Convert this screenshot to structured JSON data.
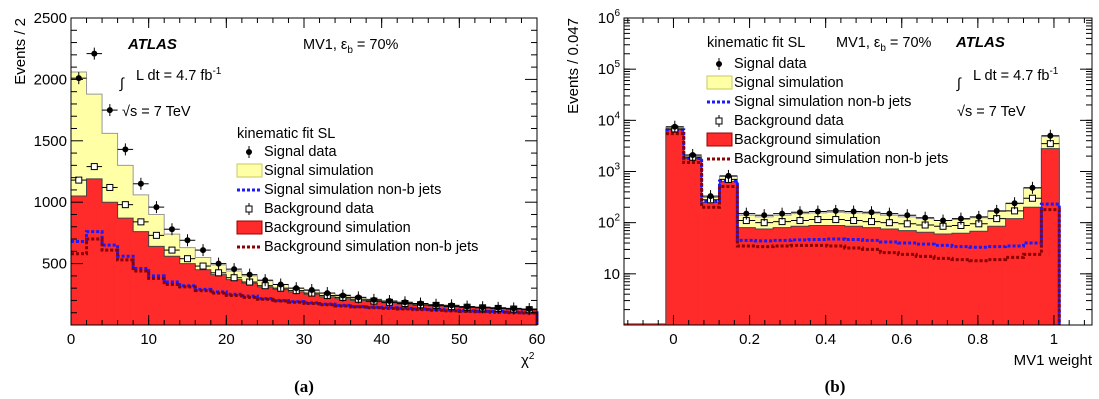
{
  "figure": {
    "panel_a_label": "(a)",
    "panel_b_label": "(b)"
  },
  "chart_data": [
    {
      "type": "bar",
      "panel": "(a)",
      "xlabel": "χ²",
      "ylabel": "Events / 2",
      "xlim": [
        0,
        60
      ],
      "ylim": [
        0,
        2500
      ],
      "xticks": [
        0,
        10,
        20,
        30,
        40,
        50,
        60
      ],
      "yticks": [
        500,
        1000,
        1500,
        2000,
        2500
      ],
      "atlas_label": "ATLAS",
      "mv1_label": "MV1, ε",
      "mv1_sub": "b",
      "mv1_tail": " = 70%",
      "lumi_prefix": "L dt = 4.7 fb",
      "lumi_exp": "-1",
      "energy_label": "√s = 7 TeV",
      "legend_title": "kinematic fit SL",
      "legend": [
        "Signal data",
        "Signal simulation",
        "Signal simulation non-b jets",
        "Background data",
        "Background simulation",
        "Background simulation non-b jets"
      ],
      "bin_edges": [
        0,
        2,
        4,
        6,
        8,
        10,
        12,
        14,
        16,
        18,
        20,
        22,
        24,
        26,
        28,
        30,
        32,
        34,
        36,
        38,
        40,
        42,
        44,
        46,
        48,
        50,
        52,
        54,
        56,
        58,
        60
      ],
      "series": [
        {
          "name": "Signal data",
          "values": [
            2010,
            2210,
            1750,
            1430,
            1150,
            960,
            780,
            690,
            610,
            500,
            455,
            410,
            365,
            330,
            300,
            285,
            260,
            240,
            225,
            205,
            195,
            185,
            175,
            165,
            160,
            150,
            145,
            140,
            135,
            130
          ]
        },
        {
          "name": "Signal simulation",
          "values": [
            2060,
            1880,
            1560,
            1300,
            1060,
            900,
            740,
            630,
            550,
            490,
            440,
            400,
            360,
            330,
            300,
            280,
            260,
            245,
            225,
            210,
            195,
            185,
            175,
            165,
            160,
            150,
            145,
            140,
            135,
            130
          ]
        },
        {
          "name": "Signal simulation non-b jets",
          "values": [
            680,
            760,
            650,
            560,
            460,
            400,
            350,
            320,
            290,
            270,
            250,
            235,
            215,
            200,
            190,
            180,
            170,
            160,
            150,
            145,
            140,
            135,
            130,
            125,
            120,
            115,
            110,
            110,
            105,
            100
          ]
        },
        {
          "name": "Background data",
          "values": [
            1180,
            1290,
            1120,
            980,
            840,
            730,
            610,
            540,
            480,
            425,
            385,
            350,
            320,
            300,
            280,
            260,
            240,
            225,
            210,
            195,
            185,
            175,
            165,
            160,
            150,
            145,
            140,
            135,
            130,
            125
          ]
        },
        {
          "name": "Background simulation",
          "values": [
            1050,
            1190,
            1000,
            870,
            760,
            640,
            560,
            500,
            450,
            410,
            370,
            340,
            310,
            290,
            270,
            250,
            230,
            215,
            200,
            190,
            180,
            170,
            160,
            155,
            150,
            145,
            140,
            135,
            130,
            125
          ]
        },
        {
          "name": "Background simulation non-b jets",
          "values": [
            580,
            700,
            610,
            530,
            440,
            380,
            330,
            310,
            280,
            260,
            240,
            225,
            210,
            195,
            185,
            175,
            165,
            155,
            148,
            140,
            135,
            130,
            125,
            120,
            115,
            110,
            108,
            104,
            100,
            98
          ]
        }
      ]
    },
    {
      "type": "bar",
      "panel": "(b)",
      "xlabel": "MV1 weight",
      "ylabel": "Events / 0.047",
      "xlim": [
        -0.13,
        1.1
      ],
      "ylim": [
        1,
        1000000
      ],
      "yscale": "log",
      "xticks": [
        0,
        0.2,
        0.4,
        0.6,
        0.8,
        1
      ],
      "ytick_labels": [
        "10",
        "10²",
        "10³",
        "10⁴",
        "10⁵",
        "10⁶"
      ],
      "atlas_label": "ATLAS",
      "mv1_label": "MV1, ε",
      "mv1_sub": "b",
      "mv1_tail": " = 70%",
      "legend_title": "kinematic fit SL",
      "lumi_prefix": "L dt = 4.7 fb",
      "lumi_exp": "-1",
      "energy_label": "√s = 7 TeV",
      "legend": [
        "Signal data",
        "Signal simulation",
        "Signal simulation non-b jets",
        "Background data",
        "Background simulation",
        "Background simulation non-b jets"
      ],
      "bin_edges": [
        -0.02,
        0.027,
        0.074,
        0.121,
        0.168,
        0.215,
        0.262,
        0.309,
        0.356,
        0.403,
        0.45,
        0.497,
        0.544,
        0.591,
        0.638,
        0.685,
        0.732,
        0.779,
        0.826,
        0.873,
        0.92,
        0.967,
        1.014
      ],
      "series": [
        {
          "name": "Signal data",
          "values": [
            7500,
            2100,
            330,
            820,
            150,
            140,
            150,
            160,
            165,
            170,
            165,
            160,
            150,
            140,
            125,
            110,
            120,
            130,
            170,
            240,
            480,
            5000
          ]
        },
        {
          "name": "Signal simulation",
          "values": [
            7300,
            2000,
            310,
            800,
            140,
            130,
            140,
            150,
            155,
            160,
            155,
            150,
            140,
            130,
            120,
            110,
            115,
            125,
            165,
            235,
            470,
            4800
          ]
        },
        {
          "name": "Signal simulation non-b jets",
          "values": [
            6500,
            1800,
            260,
            650,
            45,
            44,
            45,
            46,
            47,
            48,
            47,
            45,
            42,
            40,
            38,
            36,
            34,
            33,
            34,
            35,
            40,
            230
          ]
        },
        {
          "name": "Background data",
          "values": [
            6800,
            1900,
            280,
            700,
            110,
            100,
            105,
            110,
            115,
            115,
            110,
            105,
            100,
            95,
            90,
            85,
            88,
            95,
            120,
            170,
            300,
            3500
          ]
        },
        {
          "name": "Background simulation",
          "values": [
            6600,
            1800,
            250,
            640,
            80,
            75,
            80,
            85,
            88,
            88,
            85,
            80,
            75,
            70,
            65,
            60,
            62,
            68,
            85,
            120,
            200,
            2800
          ]
        },
        {
          "name": "Background simulation non-b jets",
          "values": [
            5500,
            1500,
            200,
            510,
            35,
            34,
            35,
            36,
            36,
            35,
            32,
            30,
            26,
            24,
            22,
            20,
            19,
            18,
            19,
            21,
            24,
            180
          ]
        }
      ]
    }
  ],
  "colors": {
    "signal_sim": "#ffffa6",
    "signal_sim_edge": "#c8c864",
    "background_sim": "#ff2a2a",
    "signal_nonb": "#1a1aff",
    "background_nonb": "#8b0000",
    "markers": "#000000"
  }
}
